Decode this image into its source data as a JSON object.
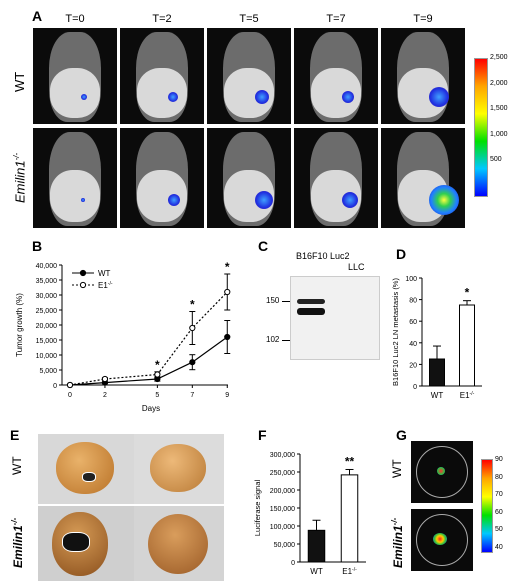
{
  "panels": {
    "A": {
      "label": "A",
      "timepoints": [
        "T=0",
        "T=2",
        "T=5",
        "T=7",
        "T=9"
      ],
      "rows": [
        "WT",
        "Emilin1"
      ],
      "row2_sup": "-/-",
      "scale_ticks": [
        "2,500",
        "2,000",
        "1,500",
        "1,000",
        "500"
      ]
    },
    "B": {
      "label": "B"
    },
    "C": {
      "label": "C",
      "lanes": [
        "B16F10 Luc2",
        "LLC"
      ],
      "markers": [
        "150",
        "102"
      ]
    },
    "D": {
      "label": "D"
    },
    "E": {
      "label": "E",
      "rows": [
        "WT",
        "Emilin1"
      ],
      "row2_sup": "-/-"
    },
    "F": {
      "label": "F"
    },
    "G": {
      "label": "G",
      "rows": [
        "WT",
        "Emilin1"
      ],
      "row2_sup": "-/-",
      "scale_ticks": [
        "90",
        "80",
        "70",
        "60",
        "50",
        "40"
      ]
    }
  },
  "chart_data": [
    {
      "type": "line",
      "panel": "B",
      "x": [
        0,
        2,
        5,
        7,
        9
      ],
      "xlabel": "Days",
      "ylabel": "Tumor growth (%)",
      "ylim": [
        0,
        40000
      ],
      "yticks": [
        "0",
        "5,000",
        "10,000",
        "15,000",
        "20,000",
        "25,000",
        "30,000",
        "35,000",
        "40,000"
      ],
      "xticks": [
        "0",
        "2",
        "5",
        "7",
        "9"
      ],
      "series": [
        {
          "name": "WT",
          "values": [
            0,
            800,
            2000,
            7600,
            16000
          ],
          "errors": [
            0,
            200,
            700,
            2500,
            5500
          ],
          "style": "solid-filled"
        },
        {
          "name": "E1",
          "name_sup": "-/-",
          "values": [
            0,
            2000,
            3500,
            19000,
            31000
          ],
          "errors": [
            0,
            400,
            900,
            5500,
            6000
          ],
          "style": "dotted-open"
        }
      ],
      "annotations": [
        "*",
        "*",
        "*"
      ],
      "legend": "top-left"
    },
    {
      "type": "bar",
      "panel": "D",
      "categories": [
        "WT",
        "E1"
      ],
      "category_sups": [
        "",
        "-/-"
      ],
      "values": [
        25,
        75
      ],
      "errors": [
        12,
        4
      ],
      "colors": [
        "#111111",
        "#ffffff"
      ],
      "ylabel": "B16F10 Luc2 LN metastasis (%)",
      "ylim": [
        0,
        100
      ],
      "yticks": [
        "0",
        "20",
        "40",
        "60",
        "80",
        "100"
      ],
      "annotations": [
        "",
        "*"
      ]
    },
    {
      "type": "bar",
      "panel": "F",
      "categories": [
        "WT",
        "E1"
      ],
      "category_sups": [
        "",
        "-/-"
      ],
      "values": [
        88000,
        242000
      ],
      "errors": [
        28000,
        15000
      ],
      "colors": [
        "#111111",
        "#ffffff"
      ],
      "ylabel": "Luciferase signal",
      "ylim": [
        0,
        300000
      ],
      "yticks": [
        "0",
        "50,000",
        "100,000",
        "150,000",
        "200,000",
        "250,000",
        "300,000"
      ],
      "annotations": [
        "",
        "**"
      ]
    }
  ]
}
